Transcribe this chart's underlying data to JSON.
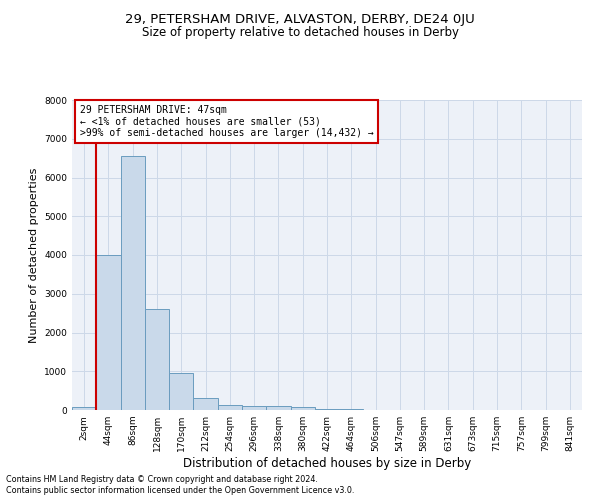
{
  "title": "29, PETERSHAM DRIVE, ALVASTON, DERBY, DE24 0JU",
  "subtitle": "Size of property relative to detached houses in Derby",
  "xlabel": "Distribution of detached houses by size in Derby",
  "ylabel": "Number of detached properties",
  "bar_values": [
    80,
    4000,
    6550,
    2600,
    950,
    310,
    130,
    110,
    100,
    80,
    30,
    20,
    10,
    5,
    5,
    3,
    2,
    1,
    1,
    1,
    0
  ],
  "bar_labels": [
    "2sqm",
    "44sqm",
    "86sqm",
    "128sqm",
    "170sqm",
    "212sqm",
    "254sqm",
    "296sqm",
    "338sqm",
    "380sqm",
    "422sqm",
    "464sqm",
    "506sqm",
    "547sqm",
    "589sqm",
    "631sqm",
    "673sqm",
    "715sqm",
    "757sqm",
    "799sqm",
    "841sqm"
  ],
  "bar_color": "#c9d9ea",
  "bar_edgecolor": "#6a9cbf",
  "bar_linewidth": 0.7,
  "ylim": [
    0,
    8000
  ],
  "yticks": [
    0,
    1000,
    2000,
    3000,
    4000,
    5000,
    6000,
    7000,
    8000
  ],
  "grid_color": "#cdd8e8",
  "bg_color": "#edf1f8",
  "vline_color": "#cc0000",
  "annotation_text": "29 PETERSHAM DRIVE: 47sqm\n← <1% of detached houses are smaller (53)\n>99% of semi-detached houses are larger (14,432) →",
  "annotation_box_color": "#cc0000",
  "footer1": "Contains HM Land Registry data © Crown copyright and database right 2024.",
  "footer2": "Contains public sector information licensed under the Open Government Licence v3.0.",
  "title_fontsize": 9.5,
  "subtitle_fontsize": 8.5,
  "tick_fontsize": 6.5,
  "ylabel_fontsize": 8,
  "xlabel_fontsize": 8.5,
  "annotation_fontsize": 7,
  "footer_fontsize": 5.8
}
